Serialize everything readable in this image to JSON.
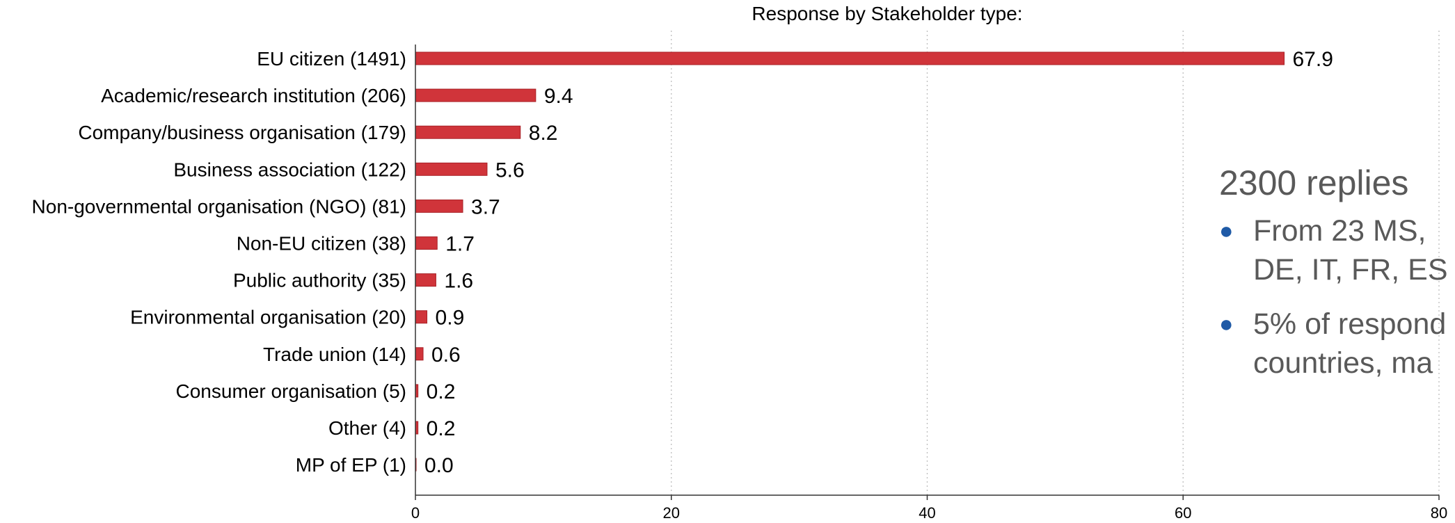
{
  "chart_data": {
    "type": "bar",
    "orientation": "horizontal",
    "title": "Response by Stakeholder type:",
    "categories": [
      "EU citizen (1491)",
      "Academic/research institution (206)",
      "Company/business organisation (179)",
      "Business association (122)",
      "Non-governmental organisation (NGO) (81)",
      "Non-EU citizen (38)",
      "Public authority (35)",
      "Environmental organisation (20)",
      "Trade union (14)",
      "Consumer organisation (5)",
      "Other (4)",
      "MP of EP (1)"
    ],
    "values": [
      67.9,
      9.4,
      8.2,
      5.6,
      3.7,
      1.7,
      1.6,
      0.9,
      0.6,
      0.2,
      0.2,
      0.0
    ],
    "value_labels": [
      "67.9",
      "9.4",
      "8.2",
      "5.6",
      "3.7",
      "1.7",
      "1.6",
      "0.9",
      "0.6",
      "0.2",
      "0.2",
      "0.0"
    ],
    "xlim": [
      0,
      80
    ],
    "xticks": [
      0,
      20,
      40,
      60,
      80
    ],
    "xtick_labels": [
      "0",
      "20",
      "40",
      "60",
      "80"
    ],
    "xlabel": "",
    "ylabel": "",
    "grid": "vertical dotted",
    "bar_color": "#d0343a"
  },
  "overlay": {
    "title": "2300 replies",
    "bullets": [
      "From 23 MS,",
      "DE, IT, FR, ES",
      "5% of respond",
      "countries, ma"
    ],
    "text_color": "#595959",
    "bullet_color": "#1f5aa6"
  }
}
